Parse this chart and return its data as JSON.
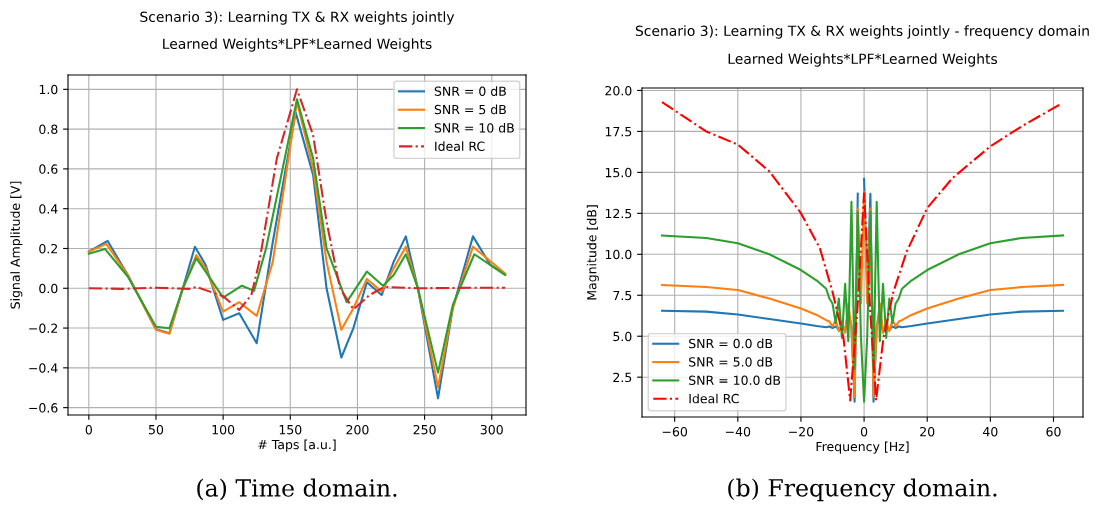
{
  "chart_data": [
    {
      "type": "line",
      "title": "Scenario 3): Learning TX & RX weights jointly",
      "subtitle": "Learned Weights*LPF*Learned Weights",
      "xlabel": "# Taps [a.u.]",
      "ylabel": "Signal Amplitude [V]",
      "annotations": [
        "(a) Time domain."
      ],
      "xlim": [
        -15.5,
        325.5
      ],
      "ylim": [
        -0.637,
        1.072
      ],
      "xticks": [
        0,
        50,
        100,
        150,
        200,
        250,
        300
      ],
      "yticks": [
        {
          "value": -0.6,
          "label": "−0.6"
        },
        {
          "value": -0.4,
          "label": "−0.4"
        },
        {
          "value": -0.2,
          "label": "−0.2"
        },
        {
          "value": 0,
          "label": "0.0"
        },
        {
          "value": 0.2,
          "label": "0.2"
        },
        {
          "value": 0.4,
          "label": "0.4"
        },
        {
          "value": 0.6,
          "label": "0.6"
        },
        {
          "value": 0.8,
          "label": "0.8"
        },
        {
          "value": 1.0,
          "label": "1.0"
        }
      ],
      "grid": true,
      "legend": "top right",
      "series": [
        {
          "name": "SNR = 0 dB",
          "color": "#1f77b4",
          "line_style": "solid",
          "x": [
            0,
            14,
            29,
            50,
            60,
            70,
            79,
            87,
            100,
            112,
            125,
            137,
            154,
            167,
            177,
            188,
            197,
            207,
            218,
            227,
            236,
            245,
            260,
            271,
            286,
            299,
            310
          ],
          "values": [
            0.184,
            0.238,
            0.067,
            -0.206,
            -0.226,
            0,
            0.209,
            0.117,
            -0.159,
            -0.126,
            -0.276,
            0.234,
            0.884,
            0.57,
            0,
            -0.348,
            -0.2,
            0.03,
            -0.034,
            0.134,
            0.261,
            0,
            -0.553,
            -0.1,
            0.261,
            0.117,
            0.07
          ]
        },
        {
          "name": "SNR = 5 dB",
          "color": "#ff7f0e",
          "line_style": "solid",
          "x": [
            0,
            13,
            29,
            50,
            60,
            70,
            80,
            87,
            100,
            112,
            125,
            137,
            155,
            167,
            177,
            188,
            197,
            207,
            218,
            227,
            236,
            245,
            260,
            271,
            286,
            310
          ],
          "values": [
            0.184,
            0.223,
            0.067,
            -0.209,
            -0.228,
            0,
            0.167,
            0.1,
            -0.117,
            -0.07,
            -0.139,
            0.134,
            0.938,
            0.603,
            0.134,
            -0.209,
            -0.1,
            0.047,
            -0.017,
            0.1,
            0.209,
            0,
            -0.497,
            -0.1,
            0.209,
            0.074
          ]
        },
        {
          "name": "SNR = 10 dB",
          "color": "#2ca02c",
          "line_style": "solid",
          "x": [
            0,
            12,
            29,
            50,
            60,
            70,
            80,
            87,
            100,
            114,
            123,
            132,
            155,
            167,
            177,
            192,
            207,
            219,
            227,
            236,
            245,
            260,
            271,
            287,
            310
          ],
          "values": [
            0.174,
            0.198,
            0.059,
            -0.193,
            -0.201,
            0,
            0.151,
            0.084,
            -0.047,
            0.013,
            -0.013,
            0.201,
            0.95,
            0.653,
            0.201,
            -0.07,
            0.084,
            0.013,
            0.067,
            0.171,
            0,
            -0.424,
            -0.084,
            0.171,
            0.067
          ]
        },
        {
          "name": "Ideal RC",
          "color": "#d62728",
          "line_style": "dashdot",
          "x": [
            0,
            25,
            50,
            75,
            80,
            100,
            112,
            121,
            127,
            140,
            155,
            167,
            177,
            187,
            197,
            209,
            220,
            245,
            275,
            310
          ],
          "values": [
            0,
            -0.003,
            0.003,
            -0.003,
            0.007,
            -0.04,
            -0.109,
            -0.034,
            0.134,
            0.653,
            1.0,
            0.77,
            0.335,
            0,
            -0.106,
            -0.034,
            0.007,
            0,
            0.002,
            0.003
          ]
        }
      ]
    },
    {
      "type": "line",
      "title": "Scenario 3): Learning TX & RX weights jointly - frequency domain",
      "subtitle": "Learned Weights*LPF*Learned Weights",
      "xlabel": "Frequency [Hz]",
      "ylabel": "Magnitude [dB]",
      "annotations": [
        "(b) Frequency domain."
      ],
      "xlim": [
        -70.35,
        69.35
      ],
      "ylim": [
        0.07,
        20.15
      ],
      "xticks": [
        {
          "value": -60,
          "label": "−60"
        },
        {
          "value": -40,
          "label": "−40"
        },
        {
          "value": -20,
          "label": "−20"
        },
        0,
        20,
        40,
        60
      ],
      "yticks": [
        {
          "value": 2.5,
          "label": "2.5"
        },
        {
          "value": 5,
          "label": "5.0"
        },
        {
          "value": 7.5,
          "label": "7.5"
        },
        {
          "value": 10,
          "label": "10.0"
        },
        {
          "value": 12.5,
          "label": "12.5"
        },
        {
          "value": 15,
          "label": "15.0"
        },
        {
          "value": 17.5,
          "label": "17.5"
        },
        {
          "value": 20,
          "label": "20.0"
        }
      ],
      "grid": true,
      "legend": "bottom left",
      "series": [
        {
          "name": "SNR = 0.0 dB",
          "color": "#1f77b4",
          "line_style": "solid",
          "x": [
            -64,
            -50,
            -40,
            -30,
            -20,
            -15,
            -12,
            -11,
            -10,
            -9,
            -8,
            -7,
            -6,
            -5,
            -4,
            -3,
            -2,
            -1,
            0,
            1,
            2,
            3,
            4,
            5,
            6,
            7,
            8,
            9,
            10,
            11,
            12,
            15,
            20,
            30,
            40,
            50,
            63
          ],
          "values": [
            6.55,
            6.5,
            6.33,
            6.05,
            5.78,
            5.62,
            5.55,
            5.6,
            5.5,
            5.6,
            5.4,
            5.7,
            5.3,
            6.5,
            5.6,
            1.0,
            13.7,
            null,
            14.6,
            8.0,
            13.7,
            1.0,
            5.6,
            6.5,
            5.3,
            5.7,
            5.4,
            5.6,
            5.5,
            5.6,
            5.55,
            5.62,
            5.78,
            6.05,
            6.33,
            6.5,
            6.55
          ]
        },
        {
          "name": "SNR = 5.0 dB",
          "color": "#ff7f0e",
          "line_style": "solid",
          "x": [
            -64,
            -50,
            -40,
            -30,
            -20,
            -15,
            -12,
            -11,
            -10,
            -9,
            -8,
            -7,
            -6,
            -5,
            -4,
            -3,
            -2,
            -1,
            0,
            1,
            2,
            3,
            4,
            5,
            6,
            7,
            8,
            9,
            10,
            11,
            12,
            15,
            20,
            30,
            40,
            50,
            63
          ],
          "values": [
            8.13,
            8.0,
            7.82,
            7.3,
            6.69,
            6.3,
            5.98,
            5.9,
            5.6,
            6.0,
            5.3,
            5.9,
            5.2,
            7.0,
            5.5,
            1.3,
            12.8,
            7.0,
            13.8,
            7.0,
            12.8,
            1.3,
            5.5,
            7.0,
            5.2,
            5.9,
            5.3,
            6.0,
            5.6,
            5.9,
            5.98,
            6.3,
            6.69,
            7.3,
            7.82,
            8.0,
            8.13
          ]
        },
        {
          "name": "SNR = 10.0 dB",
          "color": "#2ca02c",
          "line_style": "solid",
          "x": [
            -64,
            -50,
            -40,
            -30,
            -20,
            -15,
            -12,
            -11,
            -10,
            -9,
            -8,
            -7,
            -6,
            -5,
            -4,
            -3,
            -2,
            -1,
            0,
            1,
            2,
            3,
            4,
            5,
            6,
            7,
            8,
            9,
            10,
            11,
            12,
            15,
            20,
            30,
            40,
            50,
            63
          ],
          "values": [
            11.15,
            11.0,
            10.67,
            10.0,
            9.04,
            8.4,
            7.9,
            7.3,
            7.0,
            5.8,
            7.3,
            4.9,
            8.2,
            4.7,
            13.2,
            3.0,
            12.6,
            5.0,
            1.0,
            5.0,
            12.6,
            3.0,
            13.2,
            4.7,
            8.2,
            4.9,
            7.3,
            5.8,
            7.0,
            7.3,
            7.9,
            8.4,
            9.04,
            10.0,
            10.67,
            11.0,
            11.15
          ]
        },
        {
          "name": "Ideal RC",
          "color": "#ff0000",
          "line_style": "dashdot",
          "x": [
            -64,
            -50,
            -40,
            -30,
            -20,
            -14,
            -10,
            -6.5,
            -4.4,
            -2.1,
            0,
            1.9,
            3.8,
            6.1,
            9.3,
            13.5,
            20,
            28,
            40,
            50,
            62
          ],
          "values": [
            19.29,
            17.5,
            16.7,
            15.06,
            12.51,
            10.37,
            7.71,
            4.86,
            1.08,
            6.69,
            13.73,
            6.69,
            1.08,
            4.86,
            7.71,
            10.16,
            12.82,
            14.65,
            16.59,
            17.82,
            19.14
          ]
        }
      ]
    }
  ]
}
